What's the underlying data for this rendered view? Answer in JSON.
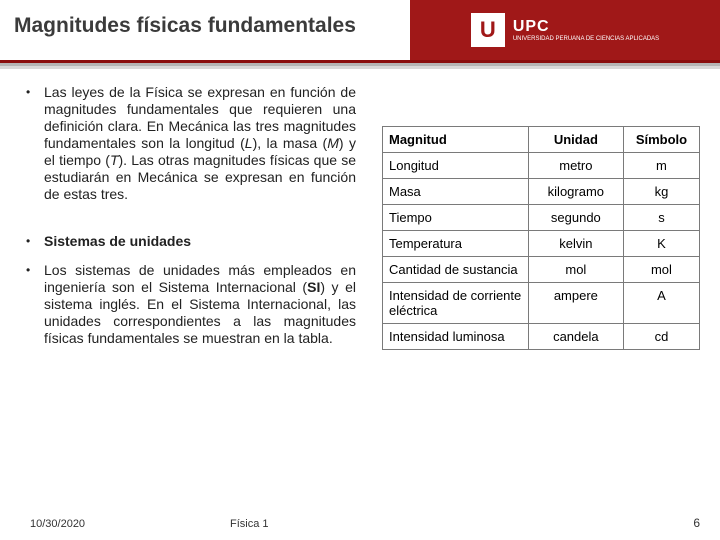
{
  "header": {
    "title": "Magnitudes físicas fundamentales",
    "logo_letter": "U",
    "logo_main": "UPC",
    "logo_sub": "UNIVERSIDAD PERUANA DE CIENCIAS APLICADAS"
  },
  "bullets": {
    "b1": "Las leyes de la Física se expresan en función de magnitudes fundamentales que requieren una definición clara. En Mecánica las tres magnitudes fundamentales son la longitud (<i>L</i>), la masa (<i>M</i>) y el tiempo (<i>T</i>). Las otras magnitudes físicas que se estudiarán en Mecánica se expresan en función de estas tres.",
    "b2": "<b>Sistemas de unidades</b>",
    "b3": "Los sistemas de unidades más empleados en ingeniería son el Sistema Internacional (<b>SI</b>) y el sistema inglés. En el Sistema Internacional, las unidades correspondientes a las magnitudes físicas fundamentales se muestran en la tabla."
  },
  "table": {
    "headers": {
      "h1": "Magnitud",
      "h2": "Unidad",
      "h3": "Símbolo"
    },
    "rows": [
      {
        "c1": "Longitud",
        "c2": "metro",
        "c3": "m"
      },
      {
        "c1": "Masa",
        "c2": "kilogramo",
        "c3": "kg"
      },
      {
        "c1": "Tiempo",
        "c2": "segundo",
        "c3": "s"
      },
      {
        "c1": "Temperatura",
        "c2": "kelvin",
        "c3": "K"
      },
      {
        "c1": "Cantidad de sustancia",
        "c2": "mol",
        "c3": "mol"
      },
      {
        "c1": "Intensidad de corriente eléctrica",
        "c2": "ampere",
        "c3": "A"
      },
      {
        "c1": "Intensidad luminosa",
        "c2": "candela",
        "c3": "cd"
      }
    ],
    "col_widths": {
      "c1": "46%",
      "c2": "30%",
      "c3": "24%"
    },
    "border_color": "#7a7a7a"
  },
  "footer": {
    "date": "10/30/2020",
    "course": "Física 1",
    "page": "6"
  },
  "colors": {
    "brand": "#a01818",
    "rule1": "#8a0e0e",
    "rule2": "#b5b5b5",
    "rule3": "#d9d9d9",
    "text": "#222222"
  }
}
